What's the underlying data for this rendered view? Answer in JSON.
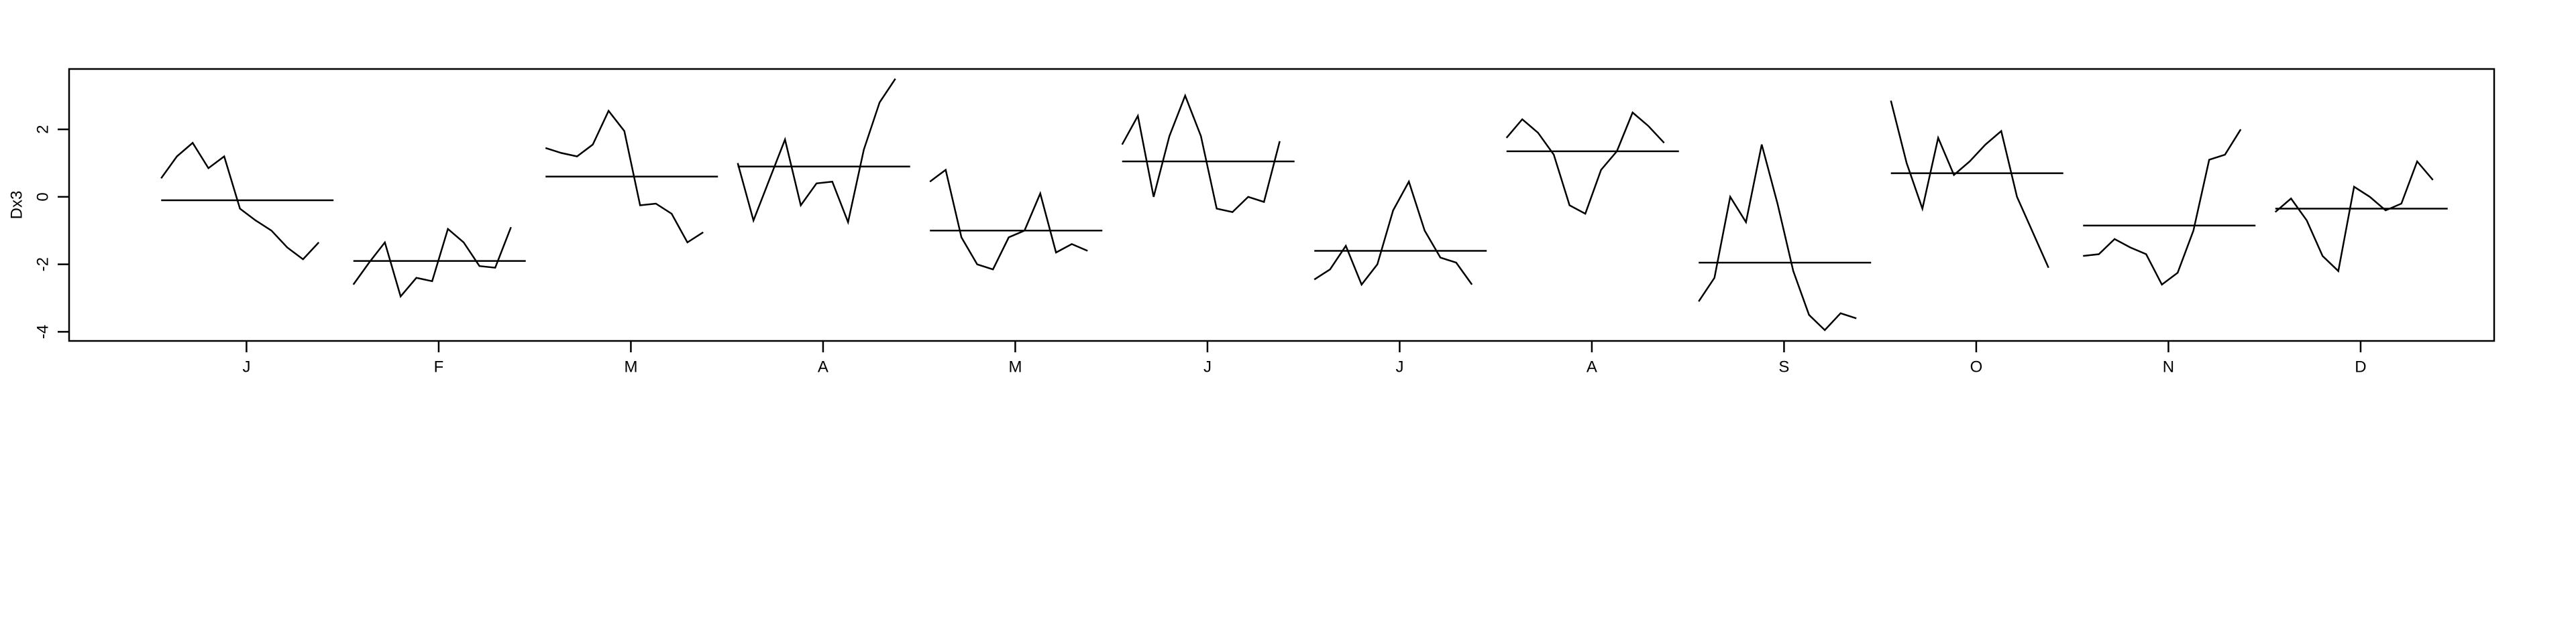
{
  "chart_data": {
    "type": "monthplot",
    "ylabel": "Dx3",
    "categories": [
      "J",
      "F",
      "M",
      "A",
      "M",
      "J",
      "J",
      "A",
      "S",
      "O",
      "N",
      "D"
    ],
    "values": [
      [
        0.55,
        1.2,
        1.6,
        0.85,
        1.2,
        -0.35,
        -0.7,
        -1.0,
        -1.5,
        -1.85,
        -1.35
      ],
      [
        -2.6,
        -1.95,
        -1.35,
        -2.95,
        -2.4,
        -2.5,
        -0.95,
        -1.35,
        -2.05,
        -2.1,
        -0.9
      ],
      [
        1.45,
        1.3,
        1.2,
        1.55,
        2.55,
        1.95,
        -0.25,
        -0.2,
        -0.5,
        -1.35,
        -1.05
      ],
      [
        1.0,
        -0.7,
        0.5,
        1.7,
        -0.25,
        0.4,
        0.45,
        -0.75,
        1.4,
        2.8,
        3.5
      ],
      [
        0.45,
        0.8,
        -1.2,
        -2.0,
        -2.15,
        -1.2,
        -1.0,
        0.1,
        -1.65,
        -1.4,
        -1.6
      ],
      [
        1.55,
        2.4,
        0.0,
        1.8,
        3.0,
        1.8,
        -0.35,
        -0.45,
        0.0,
        -0.15,
        1.65
      ],
      [
        -2.45,
        -2.15,
        -1.45,
        -2.6,
        -2.0,
        -0.4,
        0.45,
        -1.0,
        -1.8,
        -1.95,
        -2.6
      ],
      [
        1.75,
        2.3,
        1.9,
        1.25,
        -0.25,
        -0.5,
        0.8,
        1.35,
        2.5,
        2.1,
        1.6
      ],
      [
        -3.1,
        -2.4,
        0.0,
        -0.75,
        1.55,
        -0.2,
        -2.2,
        -3.5,
        -3.95,
        -3.45,
        -3.6
      ],
      [
        2.85,
        1.0,
        -0.35,
        1.75,
        0.65,
        1.05,
        1.55,
        1.95,
        0.0,
        -1.05,
        -2.1
      ],
      [
        -1.75,
        -1.7,
        -1.25,
        -1.5,
        -1.7,
        -2.6,
        -2.25,
        -1.0,
        1.1,
        1.25,
        2.0
      ],
      [
        -0.45,
        -0.05,
        -0.7,
        -1.75,
        -2.2,
        0.3,
        0.0,
        -0.4,
        -0.2,
        1.05,
        0.5
      ]
    ],
    "means": [
      -0.1,
      -1.9,
      0.6,
      0.9,
      -1.0,
      1.05,
      -1.6,
      1.35,
      -1.95,
      0.7,
      -0.85,
      -0.35
    ],
    "ylim": [
      -4.27,
      3.79
    ],
    "yticks": [
      -4,
      -2,
      0,
      2
    ],
    "color": "#000000"
  }
}
